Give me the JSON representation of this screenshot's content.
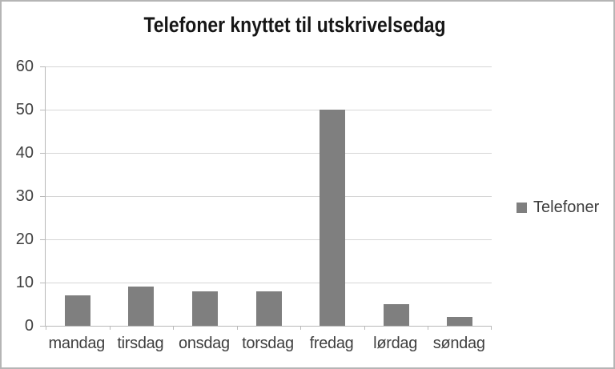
{
  "window": {
    "background_color": "#ffffff",
    "border_color": "#b5b5b5"
  },
  "chart_data": {
    "type": "bar",
    "title": "Telefoner knyttet til utskrivelsedag",
    "categories": [
      "mandag",
      "tirsdag",
      "onsdag",
      "torsdag",
      "fredag",
      "lørdag",
      "søndag"
    ],
    "series": [
      {
        "name": "Telefoner",
        "values": [
          7,
          9,
          8,
          8,
          50,
          5,
          2
        ]
      }
    ],
    "xlabel": "",
    "ylabel": "",
    "ylim": [
      0,
      60
    ],
    "yticks": [
      0,
      10,
      20,
      30,
      40,
      50,
      60
    ],
    "grid": true,
    "legend_position": "right",
    "colors": {
      "bar": "#7f7f7f",
      "gridline": "#d6d6d6",
      "axis": "#b9b9b9",
      "tick_label": "#3f3f3f",
      "title": "#161616"
    }
  },
  "legend": {
    "items": [
      {
        "label": "Telefoner",
        "swatch_color": "#7f7f7f"
      }
    ]
  }
}
